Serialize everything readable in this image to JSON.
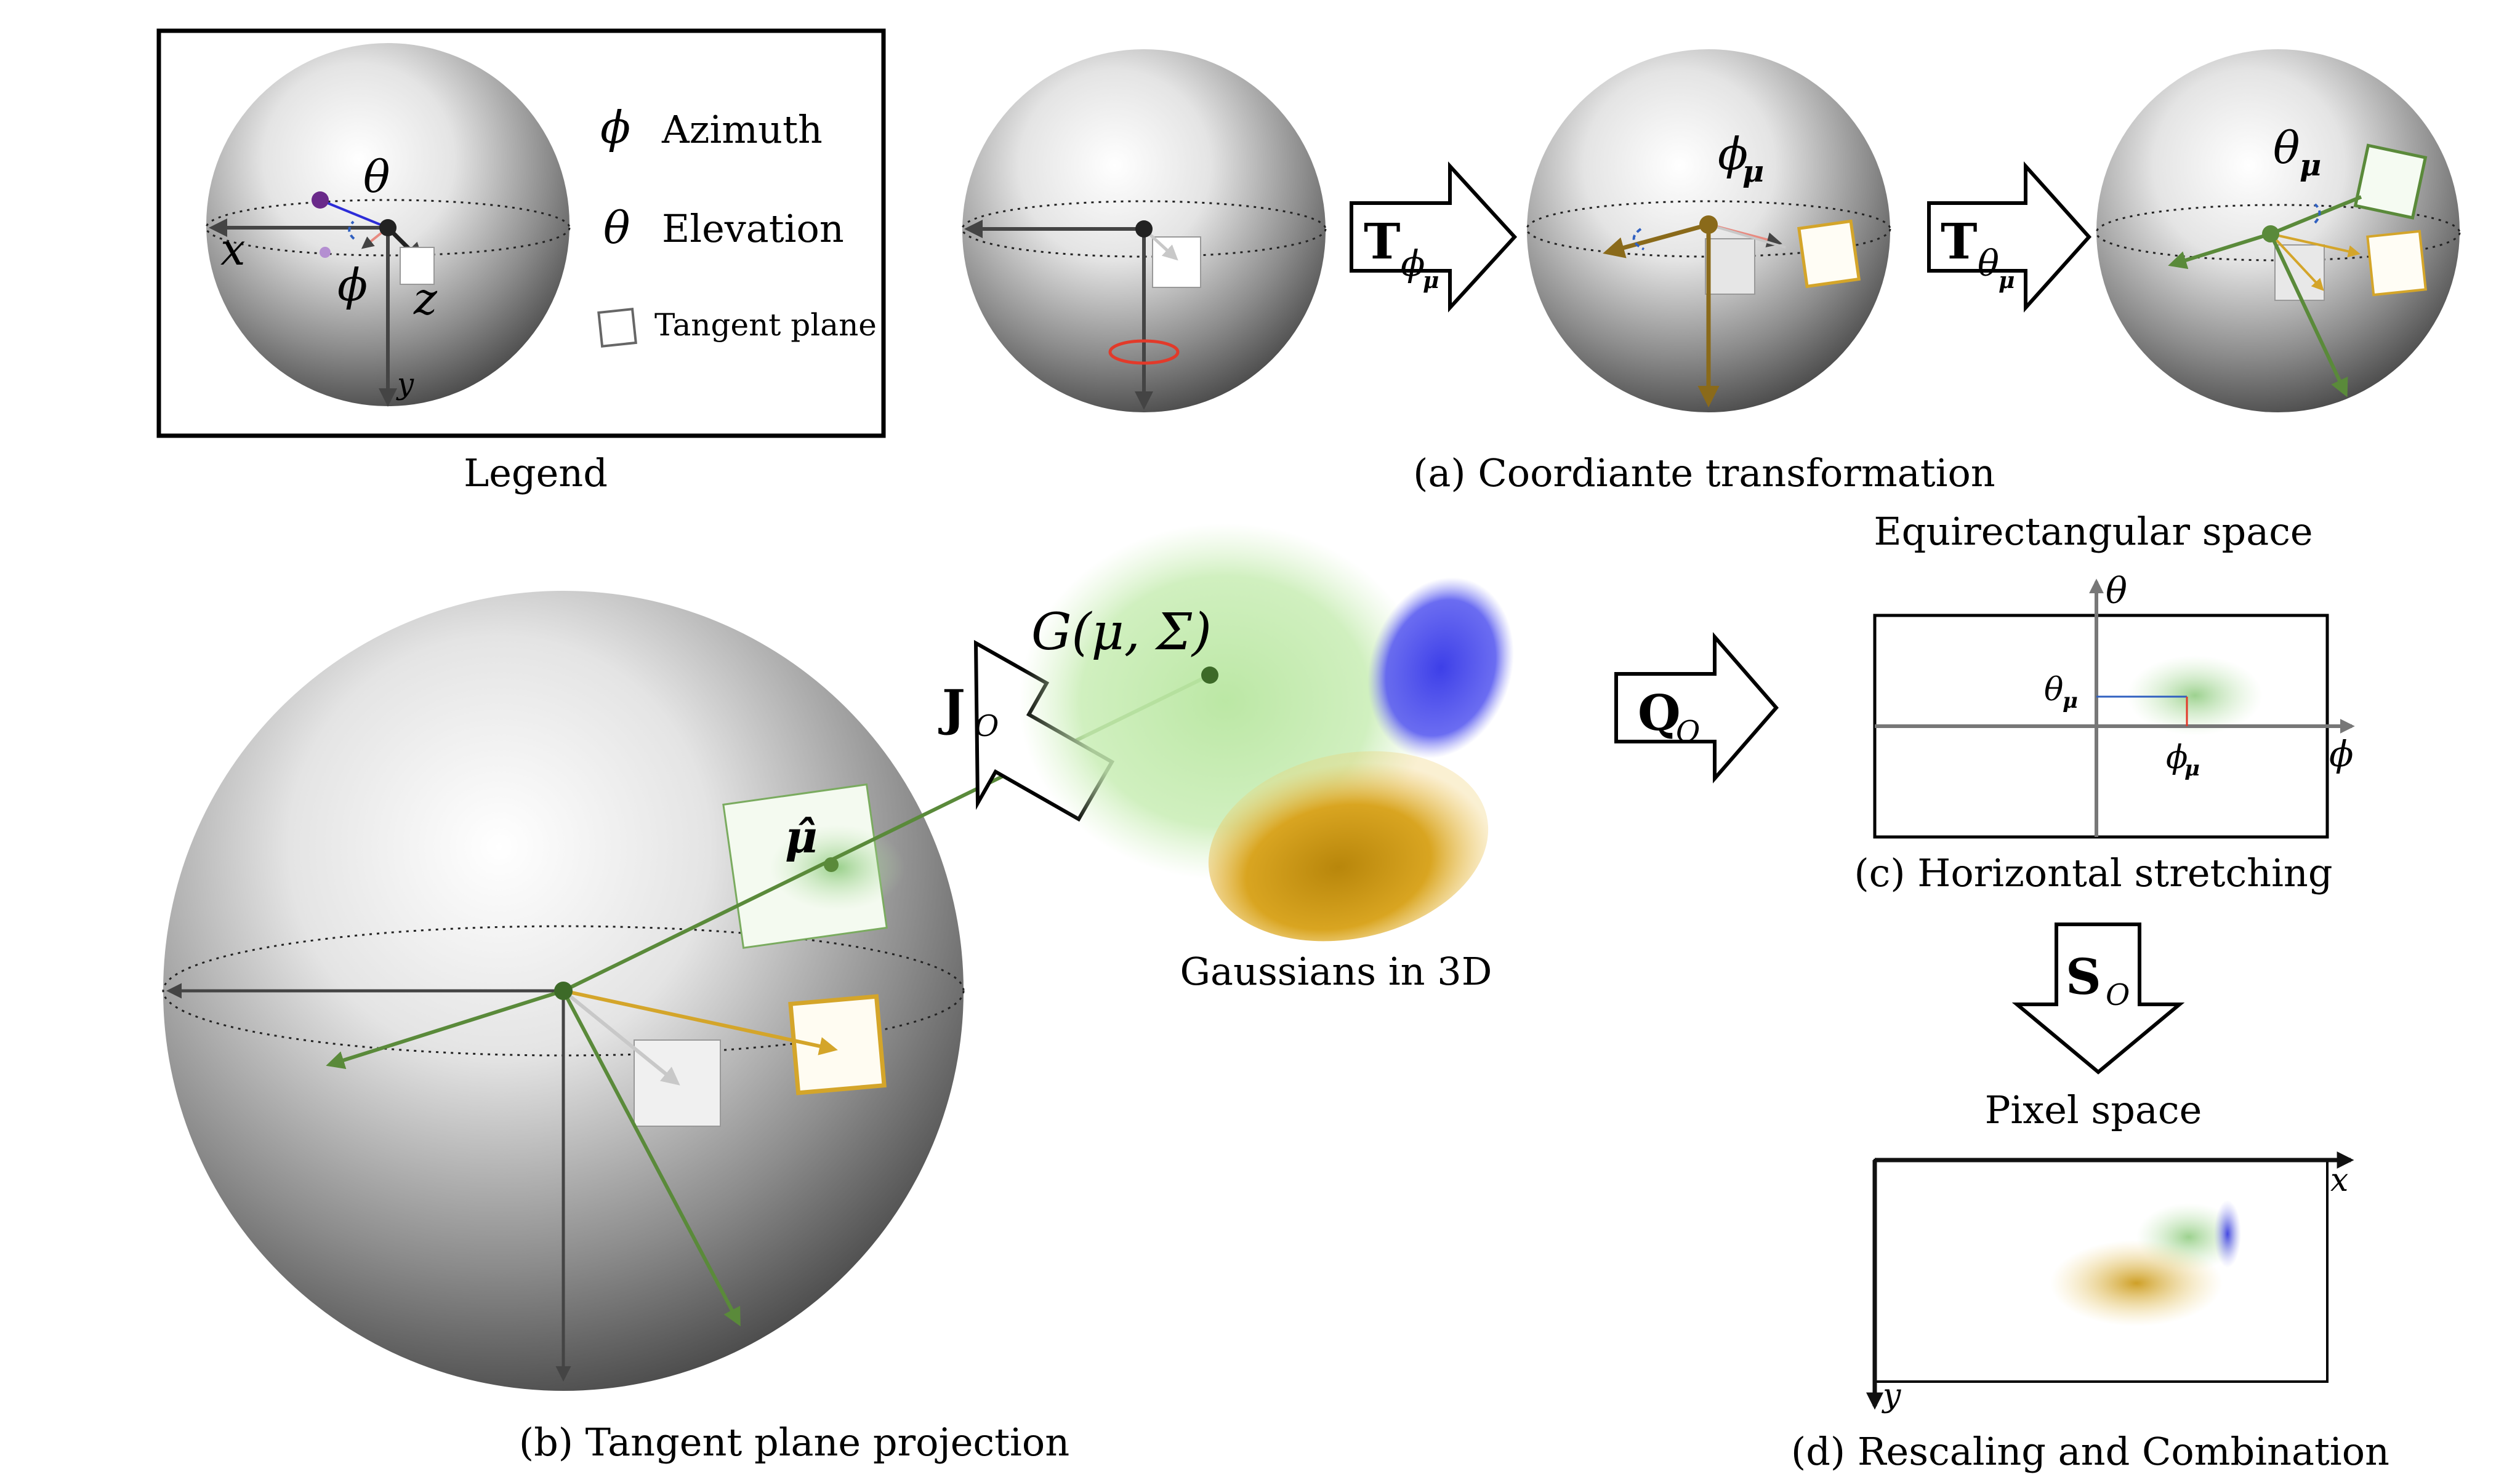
{
  "legend": {
    "title": "Legend",
    "azimuth_symbol": "ϕ",
    "azimuth_label": "Azimuth",
    "elevation_symbol": "θ",
    "elevation_label": "Elevation",
    "tangent_label": "Tangent plane",
    "axis_x": "x",
    "axis_y": "y",
    "axis_z": "z",
    "sphere_theta": "θ",
    "sphere_phi": "ϕ"
  },
  "panel_a": {
    "caption": "(a) Coordiante transformation",
    "arrow1_main": "T",
    "arrow1_sub": "ϕ",
    "arrow1_subsub": "μ",
    "arrow2_main": "T",
    "arrow2_sub": "θ",
    "arrow2_subsub": "μ",
    "sphere2_label": "ϕ",
    "sphere2_label_sub": "μ",
    "sphere3_label": "θ",
    "sphere3_label_sub": "μ"
  },
  "panel_b": {
    "caption": "(b) Tangent plane projection",
    "arrow_main": "J",
    "arrow_sub": "O",
    "gaussian_label": "G(μ, Σ)",
    "mu_hat": "μ̂",
    "gaussians_caption": "Gaussians in 3D"
  },
  "panel_c": {
    "title": "Equirectangular space",
    "caption": "(c) Horizontal stretching",
    "arrow_main": "Q",
    "arrow_sub": "O",
    "axis_theta": "θ",
    "axis_phi": "ϕ",
    "theta_mu": "θ",
    "theta_mu_sub": "μ",
    "phi_mu": "ϕ",
    "phi_mu_sub": "μ"
  },
  "panel_d": {
    "title": "Pixel space",
    "caption": "(d) Rescaling and Combination",
    "arrow_main": "S",
    "arrow_sub": "O",
    "axis_x": "x",
    "axis_y": "y"
  },
  "colors": {
    "green": "#5a8a3a",
    "gold": "#c89b1e",
    "brown": "#8a6a1a",
    "blue": "#3f48d8",
    "red": "#e23a2a",
    "purple": "#6a2a8a",
    "gray": "#555555"
  }
}
